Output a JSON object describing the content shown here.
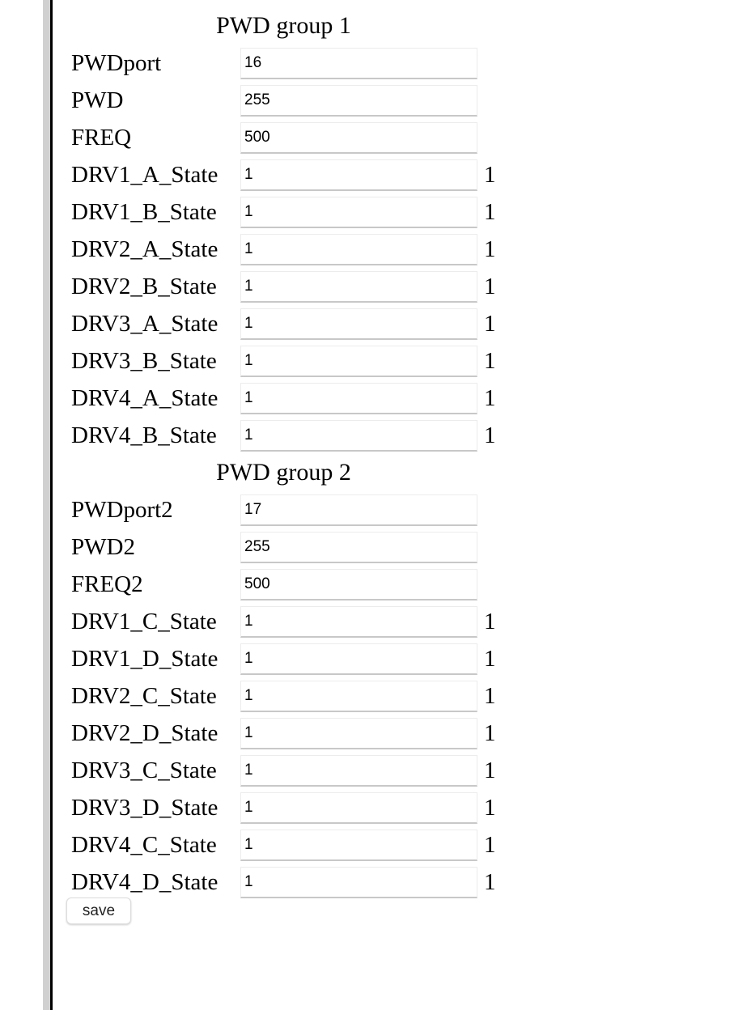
{
  "groups": [
    {
      "title": "PWD group 1",
      "fields": [
        {
          "label": "PWDport",
          "value": "16"
        },
        {
          "label": "PWD",
          "value": "255"
        },
        {
          "label": "FREQ",
          "value": "500"
        },
        {
          "label": "DRV1_A_State",
          "value": "1",
          "readout": "1"
        },
        {
          "label": "DRV1_B_State",
          "value": "1",
          "readout": "1"
        },
        {
          "label": "DRV2_A_State",
          "value": "1",
          "readout": "1"
        },
        {
          "label": "DRV2_B_State",
          "value": "1",
          "readout": "1"
        },
        {
          "label": "DRV3_A_State",
          "value": "1",
          "readout": "1"
        },
        {
          "label": "DRV3_B_State",
          "value": "1",
          "readout": "1"
        },
        {
          "label": "DRV4_A_State",
          "value": "1",
          "readout": "1"
        },
        {
          "label": "DRV4_B_State",
          "value": "1",
          "readout": "1"
        }
      ]
    },
    {
      "title": "PWD group 2",
      "fields": [
        {
          "label": "PWDport2",
          "value": "17"
        },
        {
          "label": "PWD2",
          "value": "255"
        },
        {
          "label": "FREQ2",
          "value": "500"
        },
        {
          "label": "DRV1_C_State",
          "value": "1",
          "readout": "1"
        },
        {
          "label": "DRV1_D_State",
          "value": "1",
          "readout": "1"
        },
        {
          "label": "DRV2_C_State",
          "value": "1",
          "readout": "1"
        },
        {
          "label": "DRV2_D_State",
          "value": "1",
          "readout": "1"
        },
        {
          "label": "DRV3_C_State",
          "value": "1",
          "readout": "1"
        },
        {
          "label": "DRV3_D_State",
          "value": "1",
          "readout": "1"
        },
        {
          "label": "DRV4_C_State",
          "value": "1",
          "readout": "1"
        },
        {
          "label": "DRV4_D_State",
          "value": "1",
          "readout": "1"
        }
      ]
    }
  ],
  "save_label": "save"
}
